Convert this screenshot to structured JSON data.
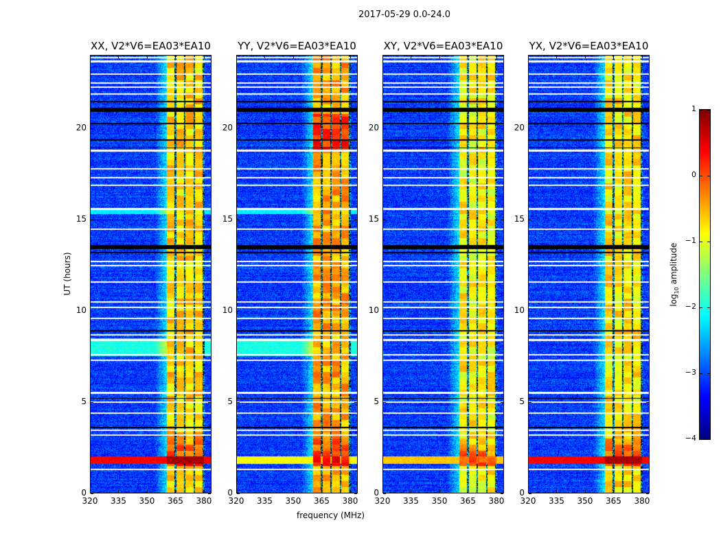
{
  "title": "2017-05-29 0.0-24.0",
  "chart_data": {
    "type": "heatmap",
    "xlabel": "frequency (MHz)",
    "ylabel": "UT (hours)",
    "xlim": [
      320,
      384
    ],
    "ylim": [
      0,
      24
    ],
    "xticks": [
      320,
      335,
      350,
      365,
      380
    ],
    "yticks": [
      0,
      5,
      10,
      15,
      20
    ],
    "panels": [
      {
        "title": "XX, V2*V6=EA03*EA10",
        "broadband_level": 0.4,
        "band_level": -0.8
      },
      {
        "title": "YY, V2*V6=EA03*EA10",
        "broadband_level": -0.9,
        "band_level": -0.6
      },
      {
        "title": "XY, V2*V6=EA03*EA10",
        "broadband_level": -0.6,
        "band_level": -1.0
      },
      {
        "title": "YX, V2*V6=EA03*EA10",
        "broadband_level": 0.4,
        "band_level": -0.9
      }
    ],
    "rfi_band_mhz": [
      360.5,
      380
    ],
    "channel_gaps_mhz": [
      365,
      370,
      375,
      380
    ],
    "broadband_event_hours": [
      1.6,
      2.0
    ],
    "flagged_hours_white": [
      1.3,
      3.2,
      3.45,
      4.4,
      5.0,
      5.5,
      7.3,
      7.6,
      8.4,
      8.7,
      9.6,
      10.2,
      10.5,
      11.6,
      12.5,
      12.7,
      14.5,
      15.6,
      16.9,
      17.3,
      17.8,
      18.8,
      21.9,
      22.3,
      22.5,
      23.0,
      23.7,
      23.9
    ],
    "flagged_hours_black": [
      13.5,
      21.05,
      21.5,
      20.3,
      19.4,
      18.95,
      3.6,
      5.2,
      8.9,
      13.2
    ],
    "colorbar": {
      "label_prefix": "log",
      "label_sub": "10",
      "label_suffix": " amplitude",
      "range": [
        -4,
        1
      ],
      "ticks": [
        {
          "v": 1,
          "t": "1"
        },
        {
          "v": 0,
          "t": "0"
        },
        {
          "v": -1,
          "t": "−1"
        },
        {
          "v": -2,
          "t": "−2"
        },
        {
          "v": -3,
          "t": "−3"
        },
        {
          "v": -4,
          "t": "−4"
        }
      ],
      "colormap": "jet"
    }
  }
}
